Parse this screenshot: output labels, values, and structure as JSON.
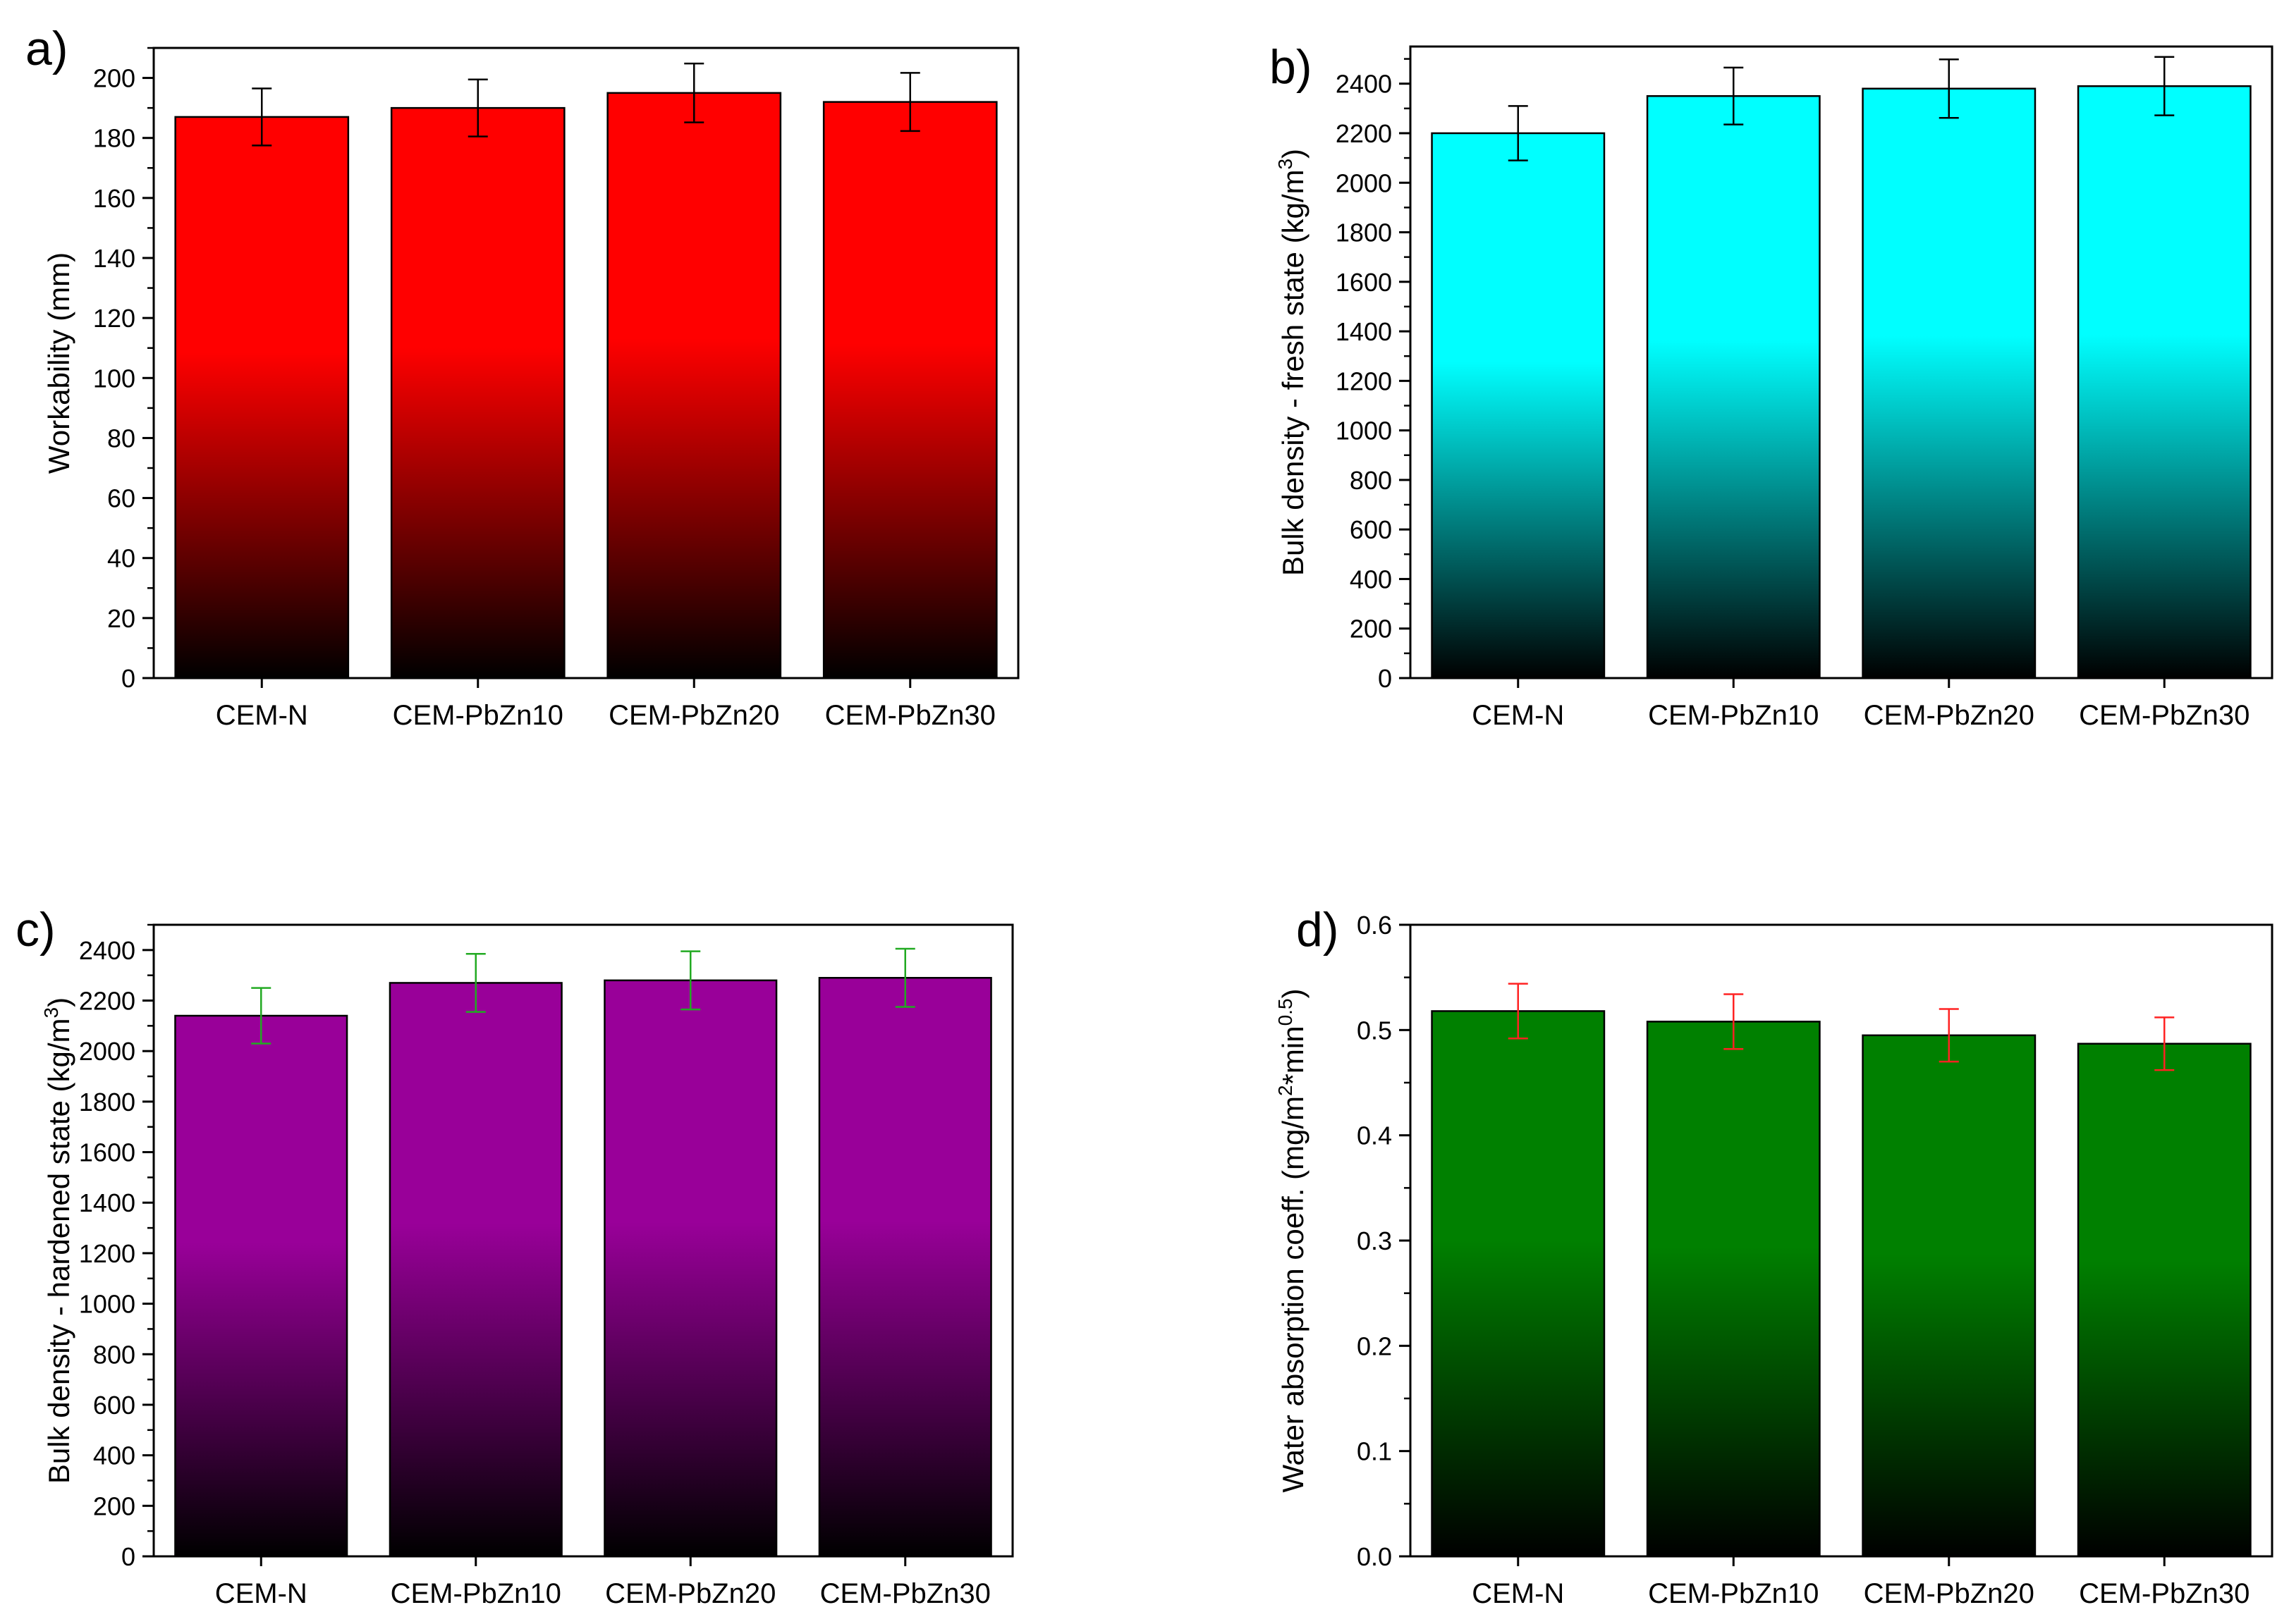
{
  "chart_data": [
    {
      "panel": "a)",
      "type": "bar",
      "categories": [
        "CEM-N",
        "CEM-PbZn10",
        "CEM-PbZn20",
        "CEM-PbZn30"
      ],
      "values": [
        187,
        190,
        195,
        192
      ],
      "errors": [
        9.5,
        9.5,
        9.8,
        9.7
      ],
      "ylabel": "Workability (mm)",
      "ylim": [
        0,
        210
      ],
      "yticks": [
        0,
        20,
        40,
        60,
        80,
        100,
        120,
        140,
        160,
        180,
        200
      ],
      "bar_color": "#ff0000",
      "error_color": "#000000"
    },
    {
      "panel": "b)",
      "type": "bar",
      "categories": [
        "CEM-N",
        "CEM-PbZn10",
        "CEM-PbZn20",
        "CEM-PbZn30"
      ],
      "values": [
        2200,
        2350,
        2380,
        2390
      ],
      "errors": [
        110,
        115,
        118,
        118
      ],
      "ylabel": "Bulk density - fresh state (kg/m",
      "ylabel_sup": "3",
      "ylabel_end": ")",
      "ylim": [
        0,
        2550
      ],
      "yticks": [
        0,
        200,
        400,
        600,
        800,
        1000,
        1200,
        1400,
        1600,
        1800,
        2000,
        2200,
        2400
      ],
      "bar_color": "#00ffff",
      "error_color": "#000000"
    },
    {
      "panel": "c)",
      "type": "bar",
      "categories": [
        "CEM-N",
        "CEM-PbZn10",
        "CEM-PbZn20",
        "CEM-PbZn30"
      ],
      "values": [
        2140,
        2270,
        2280,
        2290
      ],
      "errors": [
        110,
        115,
        115,
        115
      ],
      "ylabel": "Bulk density - hardened state (kg/m",
      "ylabel_sup": "3",
      "ylabel_end": ")",
      "ylim": [
        0,
        2500
      ],
      "yticks": [
        0,
        200,
        400,
        600,
        800,
        1000,
        1200,
        1400,
        1600,
        1800,
        2000,
        2200,
        2400
      ],
      "bar_color": "#990099",
      "error_color": "#22aa22"
    },
    {
      "panel": "d)",
      "type": "bar",
      "categories": [
        "CEM-N",
        "CEM-PbZn10",
        "CEM-PbZn20",
        "CEM-PbZn30"
      ],
      "values": [
        0.518,
        0.508,
        0.495,
        0.487
      ],
      "errors": [
        0.026,
        0.026,
        0.025,
        0.025
      ],
      "ylabel": "Water absorption coeff. (mg/m",
      "ylabel_sup": "2",
      "ylabel_mid": "*min",
      "ylabel_sup2": "0.5",
      "ylabel_end": ")",
      "ylim": [
        0,
        0.6
      ],
      "yticks": [
        0.0,
        0.1,
        0.2,
        0.3,
        0.4,
        0.5,
        0.6
      ],
      "tick_decimals": 1,
      "bar_color": "#008000",
      "error_color": "#ff2222"
    }
  ]
}
